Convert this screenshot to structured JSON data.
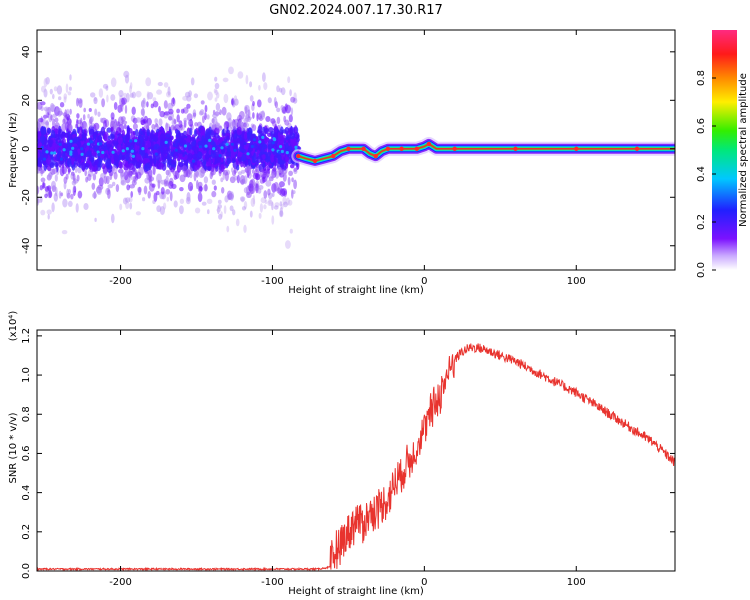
{
  "title": "GN02.2024.007.17.30.R17",
  "colors": {
    "signal_line": "#e8332e",
    "ridge": "#e83030",
    "noise": "#6a0dff",
    "axis": "#000000"
  },
  "chart_data": [
    {
      "type": "heatmap",
      "xlabel": "Height of straight line (km)",
      "ylabel": "Frequency (Hz)",
      "xlim": [
        -255,
        165
      ],
      "ylim": [
        -50,
        49
      ],
      "x_ticks": [
        -200,
        -100,
        0,
        100
      ],
      "y_ticks": [
        -40,
        -20,
        0,
        20,
        40
      ],
      "colorbar": {
        "label": "Normalized spectral amplitude",
        "range": [
          0,
          1
        ],
        "ticks": [
          "0.0",
          "0.2",
          "0.4",
          "0.6",
          "0.8"
        ],
        "colormap": "rainbow (purple-blue-cyan-green-yellow-red-pink)"
      },
      "noise_region_x": [
        -255,
        -83
      ],
      "ridge": {
        "x": [
          -83,
          -78,
          -72,
          -66,
          -60,
          -55,
          -50,
          -45,
          -40,
          -36,
          -32,
          -28,
          -24,
          -20,
          -15,
          -10,
          -5,
          0,
          3,
          8,
          20,
          40,
          60,
          80,
          100,
          120,
          140,
          165
        ],
        "y": [
          -3,
          -4,
          -5,
          -4,
          -3,
          -1,
          0,
          0,
          0,
          -2,
          -3,
          -1,
          0,
          0,
          0,
          0,
          0,
          1,
          2,
          0,
          0,
          0,
          0,
          0,
          0,
          0,
          0,
          0
        ]
      }
    },
    {
      "type": "line",
      "xlabel": "Height of straight line (km)",
      "ylabel": "SNR (10 * v/v)",
      "y_scale_label": "(x10⁴)",
      "xlim": [
        -255,
        165
      ],
      "ylim": [
        0,
        1.23
      ],
      "x_ticks": [
        -200,
        -100,
        0,
        100
      ],
      "y_ticks": [
        "0.0",
        "0.2",
        "0.4",
        "0.6",
        "0.8",
        "1.0",
        "1.2"
      ],
      "series": [
        {
          "x": [
            -255,
            -200,
            -150,
            -100,
            -70,
            -62,
            -58,
            -54,
            -50,
            -45,
            -40,
            -35,
            -30,
            -25,
            -20,
            -15,
            -10,
            -5,
            0,
            5,
            10,
            15,
            20,
            25,
            30,
            35,
            40,
            50,
            60,
            70,
            80,
            90,
            100,
            110,
            120,
            130,
            140,
            150,
            160,
            165
          ],
          "values": [
            0.01,
            0.01,
            0.01,
            0.01,
            0.01,
            0.02,
            0.12,
            0.16,
            0.2,
            0.26,
            0.25,
            0.3,
            0.32,
            0.36,
            0.44,
            0.5,
            0.56,
            0.64,
            0.72,
            0.82,
            0.9,
            1.0,
            1.08,
            1.12,
            1.14,
            1.14,
            1.13,
            1.1,
            1.07,
            1.03,
            0.99,
            0.95,
            0.91,
            0.86,
            0.81,
            0.76,
            0.71,
            0.66,
            0.59,
            0.55
          ]
        }
      ]
    }
  ]
}
